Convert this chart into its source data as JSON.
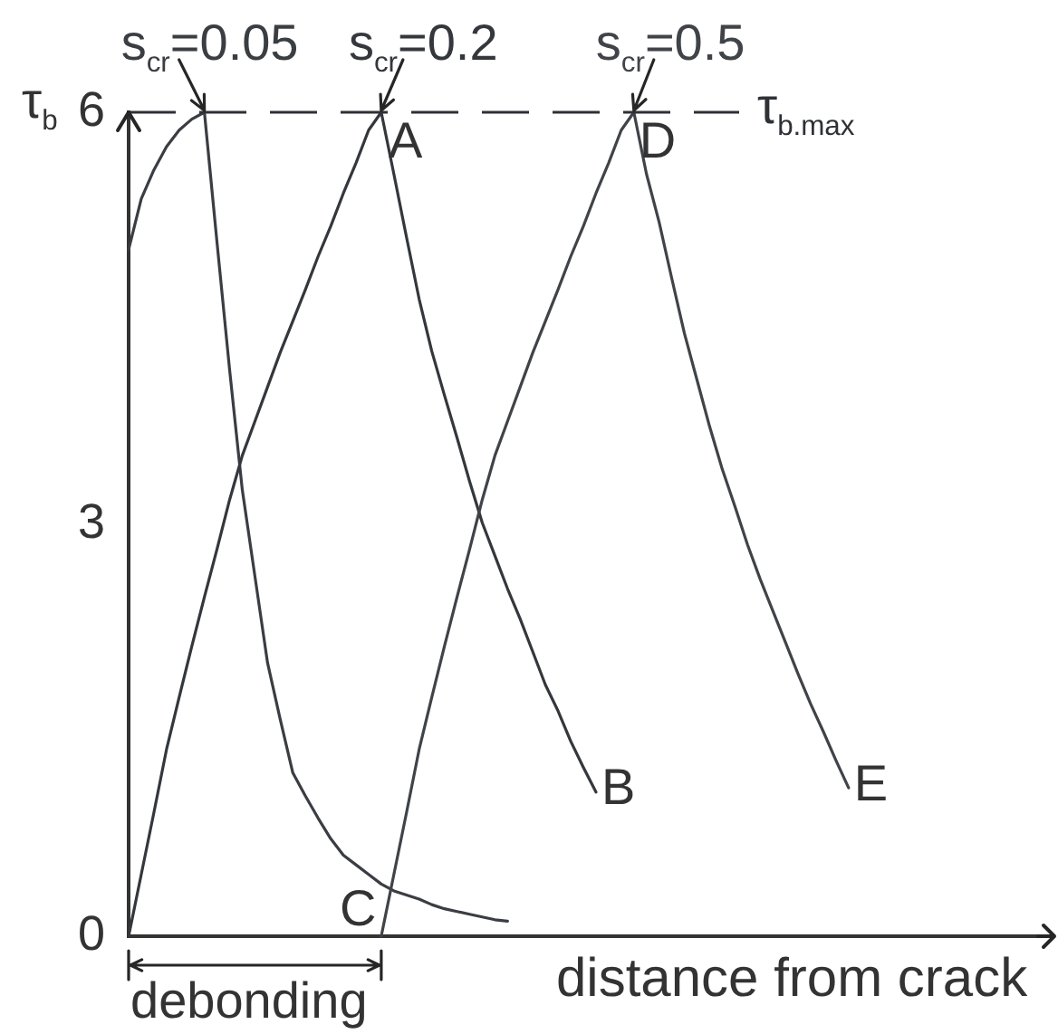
{
  "chart_data": {
    "type": "line",
    "xlabel": "distance from crack",
    "ylabel": "τ$_{b}$",
    "categories": [
      null,
      null,
      null,
      null,
      null,
      null,
      null,
      null,
      null,
      null,
      null,
      null,
      null,
      null,
      null,
      null,
      null,
      null,
      null,
      null,
      null,
      null,
      null,
      null,
      null,
      null,
      null,
      null,
      null,
      null,
      null,
      null,
      null,
      null,
      null,
      null,
      null,
      null,
      null,
      null,
      null,
      null,
      null,
      null,
      null,
      null,
      null,
      null,
      null,
      null,
      null,
      null,
      null,
      null,
      null,
      null,
      null,
      null,
      null,
      null,
      null,
      null,
      null,
      null,
      null,
      null,
      null,
      null,
      null,
      null,
      null,
      null,
      null
    ],
    "series": [
      {
        "name": "s$_{cr}$=0.05",
        "color": "#3a3d42",
        "values": [
          5.0,
          5.37,
          5.58,
          5.75,
          5.87,
          5.95,
          6,
          5.05,
          4.12,
          3.25,
          2.62,
          1.99,
          1.58,
          1.19,
          1.02,
          0.86,
          0.71,
          0.59,
          0.52,
          0.45,
          0.38,
          0.33,
          0.3,
          0.27,
          0.23,
          0.2,
          0.18,
          0.16,
          0.14,
          0.12,
          0.11,
          null,
          null,
          null,
          null,
          null,
          null,
          null,
          null,
          null,
          null,
          null,
          null,
          null,
          null,
          null,
          null,
          null,
          null,
          null,
          null,
          null,
          null,
          null,
          null,
          null,
          null,
          null,
          null,
          null,
          null,
          null,
          null,
          null,
          null,
          null,
          null,
          null,
          null,
          null,
          null,
          null,
          null
        ]
      },
      {
        "name": "s$_{cr}$=0.2",
        "color": "#34373c",
        "values": [
          0,
          0.45,
          0.9,
          1.36,
          1.74,
          2.11,
          2.47,
          2.82,
          3.18,
          3.5,
          3.75,
          4.0,
          4.25,
          4.48,
          4.71,
          4.95,
          5.17,
          5.41,
          5.63,
          5.87,
          6,
          5.55,
          5.09,
          4.64,
          4.26,
          3.94,
          3.63,
          3.31,
          3.01,
          2.77,
          2.53,
          2.31,
          2.07,
          1.83,
          1.64,
          1.42,
          1.23,
          1.05,
          null,
          null,
          null,
          null,
          null,
          null,
          null,
          null,
          null,
          null,
          null,
          null,
          null,
          null,
          null,
          null,
          null,
          null,
          null,
          null,
          null,
          null,
          null,
          null,
          null,
          null,
          null,
          null,
          null,
          null,
          null,
          null,
          null,
          null,
          null
        ]
      },
      {
        "name": "s$_{cr}$=0.5",
        "color": "#404348",
        "values": [
          null,
          null,
          null,
          null,
          null,
          null,
          null,
          null,
          null,
          null,
          null,
          null,
          null,
          null,
          null,
          null,
          null,
          null,
          null,
          null,
          0,
          0.45,
          0.9,
          1.36,
          1.74,
          2.11,
          2.47,
          2.82,
          3.18,
          3.5,
          3.75,
          4.0,
          4.25,
          4.48,
          4.71,
          4.95,
          5.17,
          5.41,
          5.63,
          5.87,
          6,
          5.55,
          5.2,
          4.79,
          4.39,
          4.05,
          3.71,
          3.4,
          3.13,
          2.85,
          2.6,
          2.37,
          2.14,
          1.91,
          1.69,
          1.49,
          1.28,
          1.08,
          null,
          null,
          null,
          null,
          null,
          null,
          null,
          null,
          null,
          null,
          null,
          null,
          null,
          null,
          null
        ]
      }
    ],
    "ylim": [
      0,
      6
    ],
    "yticks": [
      0,
      3,
      6
    ],
    "tick_labels": "y",
    "ref_lines": [
      {
        "axis": "y",
        "value": 6,
        "label": "τ$_{b.max}$",
        "color": "#2e3136",
        "line_style": "dashed"
      }
    ],
    "annotations": [
      {
        "text": "A",
        "y": 6
      },
      "B",
      "C",
      {
        "text": "D",
        "y": 6
      },
      "E",
      "debonding"
    ]
  }
}
